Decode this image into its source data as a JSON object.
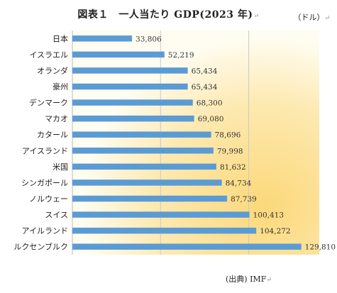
{
  "header": {
    "title": "図表１　一人当たり GDP(2023 年)",
    "unit": "（ドル）",
    "source": "(出典) IMF"
  },
  "chart_data": {
    "type": "bar",
    "orientation": "horizontal",
    "title": "図表１　一人当たり GDP(2023 年)",
    "unit": "ドル",
    "categories": [
      "日本",
      "イスラエル",
      "オランダ",
      "豪州",
      "デンマーク",
      "マカオ",
      "カタール",
      "アイスランド",
      "米国",
      "シンガポール",
      "ノルウェー",
      "スイス",
      "アイルランド",
      "ルクセンブルク"
    ],
    "values": [
      33806,
      52219,
      65434,
      65434,
      68300,
      69080,
      78696,
      79998,
      81632,
      84734,
      87739,
      100413,
      104272,
      129810
    ],
    "data_labels": [
      "33,806",
      "52,219",
      "65,434",
      "65,434",
      "68,300",
      "69,080",
      "78,696",
      "79,998",
      "81,632",
      "84,734",
      "87,739",
      "100,413",
      "104,272",
      "129,810"
    ],
    "xlim": [
      0,
      140000
    ],
    "gridlines_at": [
      0,
      50000,
      100000
    ],
    "grid": true,
    "legend": "none",
    "bar_color": "#5b9bd5",
    "background_gradient": [
      "#fffdf2",
      "#fbd87a"
    ]
  }
}
